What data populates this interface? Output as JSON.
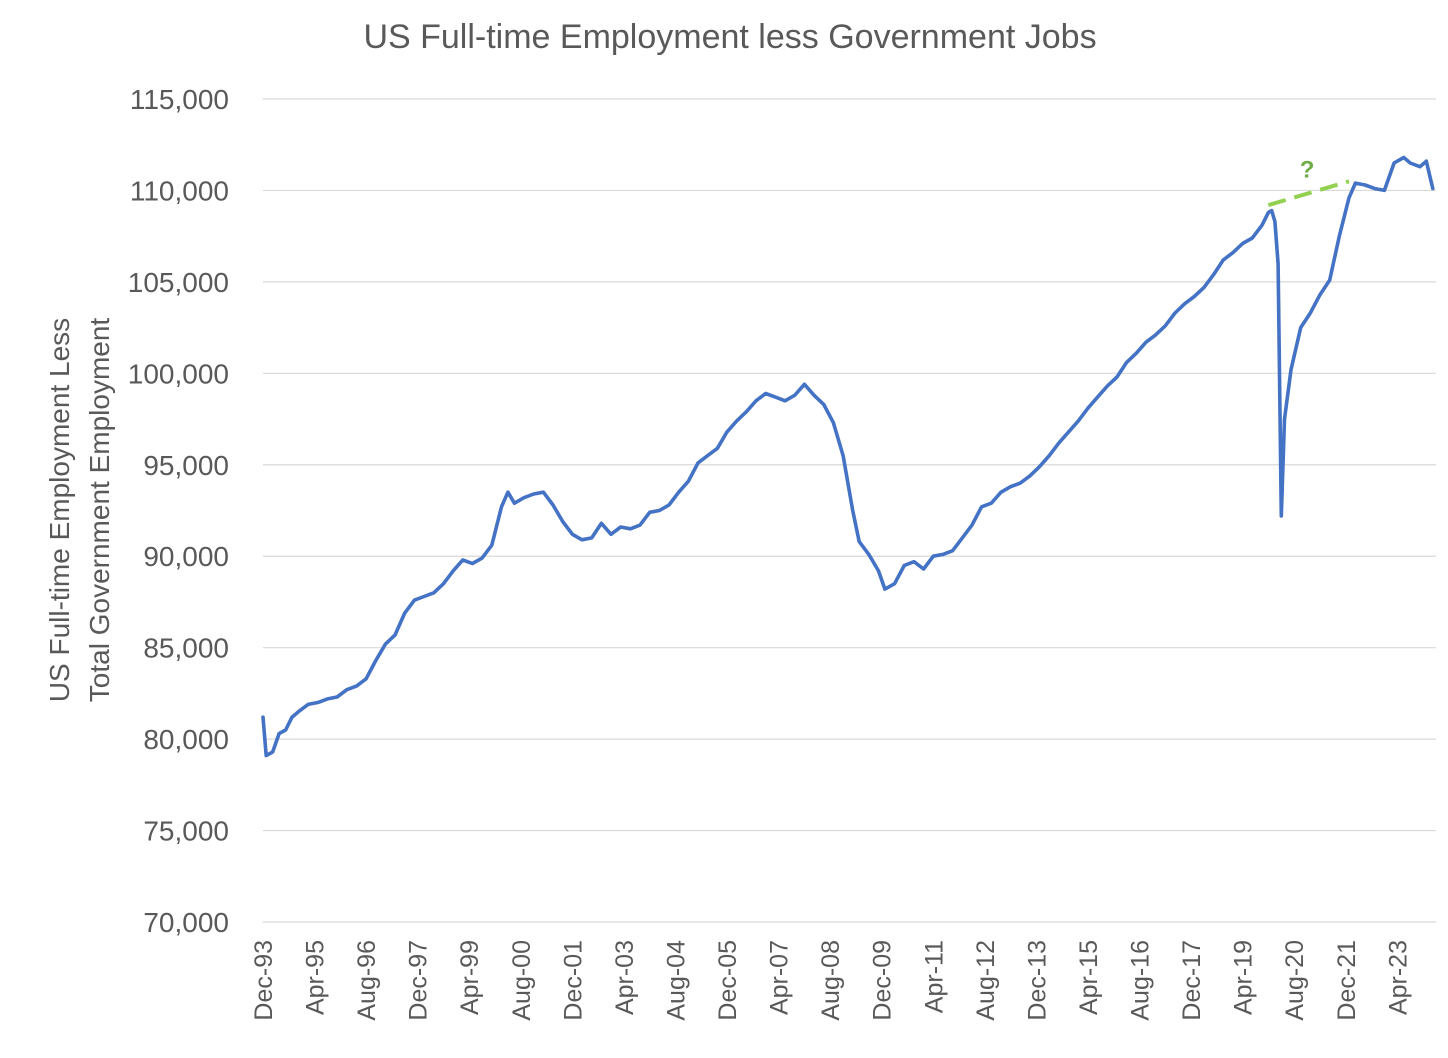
{
  "chart_data": {
    "type": "line",
    "title": "US Full-time Employment less Government Jobs",
    "ylabel_lines": [
      "US Full-time Employment Less",
      "Total Government Employment"
    ],
    "xlabel": "",
    "ylim": [
      70000,
      115000
    ],
    "y_ticks": [
      70000,
      75000,
      80000,
      85000,
      90000,
      95000,
      100000,
      105000,
      110000,
      115000
    ],
    "y_tick_labels": [
      "70,000",
      "75,000",
      "80,000",
      "85,000",
      "90,000",
      "95,000",
      "100,000",
      "105,000",
      "110,000",
      "115,000"
    ],
    "x_ticks": [
      "1993-12",
      "1995-04",
      "1996-08",
      "1997-12",
      "1999-04",
      "2000-08",
      "2001-12",
      "2003-04",
      "2004-08",
      "2005-12",
      "2007-04",
      "2008-08",
      "2009-12",
      "2011-04",
      "2012-08",
      "2013-12",
      "2015-04",
      "2016-08",
      "2017-12",
      "2019-04",
      "2020-08",
      "2021-12",
      "2023-04"
    ],
    "x_tick_labels": [
      "Dec-93",
      "Apr-95",
      "Aug-96",
      "Dec-97",
      "Apr-99",
      "Aug-00",
      "Dec-01",
      "Apr-03",
      "Aug-04",
      "Dec-05",
      "Apr-07",
      "Aug-08",
      "Dec-09",
      "Apr-11",
      "Aug-12",
      "Dec-13",
      "Apr-15",
      "Aug-16",
      "Dec-17",
      "Apr-19",
      "Aug-20",
      "Dec-21",
      "Apr-23"
    ],
    "x_range": [
      "1993-12",
      "2024-04"
    ],
    "grid": "horizontal",
    "legend": "none",
    "series": [
      {
        "color": "#4472c4",
        "points": [
          [
            "1993-12",
            81200
          ],
          [
            "1994-01",
            79100
          ],
          [
            "1994-03",
            79300
          ],
          [
            "1994-05",
            80300
          ],
          [
            "1994-07",
            80500
          ],
          [
            "1994-09",
            81200
          ],
          [
            "1994-11",
            81500
          ],
          [
            "1995-02",
            81900
          ],
          [
            "1995-05",
            82000
          ],
          [
            "1995-08",
            82200
          ],
          [
            "1995-11",
            82300
          ],
          [
            "1996-02",
            82700
          ],
          [
            "1996-05",
            82900
          ],
          [
            "1996-08",
            83300
          ],
          [
            "1996-11",
            84300
          ],
          [
            "1997-02",
            85200
          ],
          [
            "1997-05",
            85700
          ],
          [
            "1997-08",
            86900
          ],
          [
            "1997-11",
            87600
          ],
          [
            "1998-02",
            87800
          ],
          [
            "1998-05",
            88000
          ],
          [
            "1998-08",
            88500
          ],
          [
            "1998-11",
            89200
          ],
          [
            "1999-02",
            89800
          ],
          [
            "1999-05",
            89600
          ],
          [
            "1999-08",
            89900
          ],
          [
            "1999-11",
            90600
          ],
          [
            "2000-02",
            92700
          ],
          [
            "2000-04",
            93500
          ],
          [
            "2000-06",
            92900
          ],
          [
            "2000-09",
            93200
          ],
          [
            "2000-12",
            93400
          ],
          [
            "2001-03",
            93500
          ],
          [
            "2001-06",
            92800
          ],
          [
            "2001-09",
            91900
          ],
          [
            "2001-12",
            91200
          ],
          [
            "2002-03",
            90900
          ],
          [
            "2002-06",
            91000
          ],
          [
            "2002-09",
            91800
          ],
          [
            "2002-12",
            91200
          ],
          [
            "2003-03",
            91600
          ],
          [
            "2003-06",
            91500
          ],
          [
            "2003-09",
            91700
          ],
          [
            "2003-12",
            92400
          ],
          [
            "2004-03",
            92500
          ],
          [
            "2004-06",
            92800
          ],
          [
            "2004-09",
            93500
          ],
          [
            "2004-12",
            94100
          ],
          [
            "2005-03",
            95100
          ],
          [
            "2005-06",
            95500
          ],
          [
            "2005-09",
            95900
          ],
          [
            "2005-12",
            96800
          ],
          [
            "2006-03",
            97400
          ],
          [
            "2006-06",
            97900
          ],
          [
            "2006-09",
            98500
          ],
          [
            "2006-12",
            98900
          ],
          [
            "2007-03",
            98700
          ],
          [
            "2007-06",
            98500
          ],
          [
            "2007-09",
            98800
          ],
          [
            "2007-12",
            99400
          ],
          [
            "2008-03",
            98800
          ],
          [
            "2008-06",
            98300
          ],
          [
            "2008-09",
            97300
          ],
          [
            "2008-12",
            95500
          ],
          [
            "2009-03",
            92500
          ],
          [
            "2009-05",
            90800
          ],
          [
            "2009-08",
            90100
          ],
          [
            "2009-11",
            89200
          ],
          [
            "2010-01",
            88200
          ],
          [
            "2010-04",
            88500
          ],
          [
            "2010-07",
            89500
          ],
          [
            "2010-10",
            89700
          ],
          [
            "2011-01",
            89300
          ],
          [
            "2011-04",
            90000
          ],
          [
            "2011-07",
            90100
          ],
          [
            "2011-10",
            90300
          ],
          [
            "2012-01",
            91000
          ],
          [
            "2012-04",
            91700
          ],
          [
            "2012-07",
            92700
          ],
          [
            "2012-10",
            92900
          ],
          [
            "2013-01",
            93500
          ],
          [
            "2013-04",
            93800
          ],
          [
            "2013-07",
            94000
          ],
          [
            "2013-10",
            94400
          ],
          [
            "2014-01",
            94900
          ],
          [
            "2014-04",
            95500
          ],
          [
            "2014-07",
            96200
          ],
          [
            "2014-10",
            96800
          ],
          [
            "2015-01",
            97400
          ],
          [
            "2015-04",
            98100
          ],
          [
            "2015-07",
            98700
          ],
          [
            "2015-10",
            99300
          ],
          [
            "2016-01",
            99800
          ],
          [
            "2016-04",
            100600
          ],
          [
            "2016-07",
            101100
          ],
          [
            "2016-10",
            101700
          ],
          [
            "2017-01",
            102100
          ],
          [
            "2017-04",
            102600
          ],
          [
            "2017-07",
            103300
          ],
          [
            "2017-10",
            103800
          ],
          [
            "2018-01",
            104200
          ],
          [
            "2018-04",
            104700
          ],
          [
            "2018-07",
            105400
          ],
          [
            "2018-10",
            106200
          ],
          [
            "2019-01",
            106600
          ],
          [
            "2019-04",
            107100
          ],
          [
            "2019-07",
            107400
          ],
          [
            "2019-10",
            108100
          ],
          [
            "2019-12",
            108800
          ],
          [
            "2020-01",
            108900
          ],
          [
            "2020-02",
            108300
          ],
          [
            "2020-03",
            106000
          ],
          [
            "2020-04",
            92200
          ],
          [
            "2020-05",
            97500
          ],
          [
            "2020-07",
            100200
          ],
          [
            "2020-10",
            102500
          ],
          [
            "2021-01",
            103300
          ],
          [
            "2021-04",
            104300
          ],
          [
            "2021-07",
            105100
          ],
          [
            "2021-10",
            107500
          ],
          [
            "2022-01",
            109600
          ],
          [
            "2022-03",
            110400
          ],
          [
            "2022-06",
            110300
          ],
          [
            "2022-09",
            110100
          ],
          [
            "2022-12",
            110000
          ],
          [
            "2023-03",
            111500
          ],
          [
            "2023-06",
            111800
          ],
          [
            "2023-08",
            111500
          ],
          [
            "2023-11",
            111300
          ],
          [
            "2024-01",
            111600
          ],
          [
            "2024-03",
            110100
          ]
        ]
      },
      {
        "color": "#92d050",
        "dashed": true,
        "points": [
          [
            "2019-12",
            109200
          ],
          [
            "2022-01",
            110500
          ]
        ]
      }
    ],
    "annotations": [
      {
        "text": "?",
        "x": "2020-12",
        "y": 110700,
        "color": "#70ad47"
      }
    ]
  }
}
